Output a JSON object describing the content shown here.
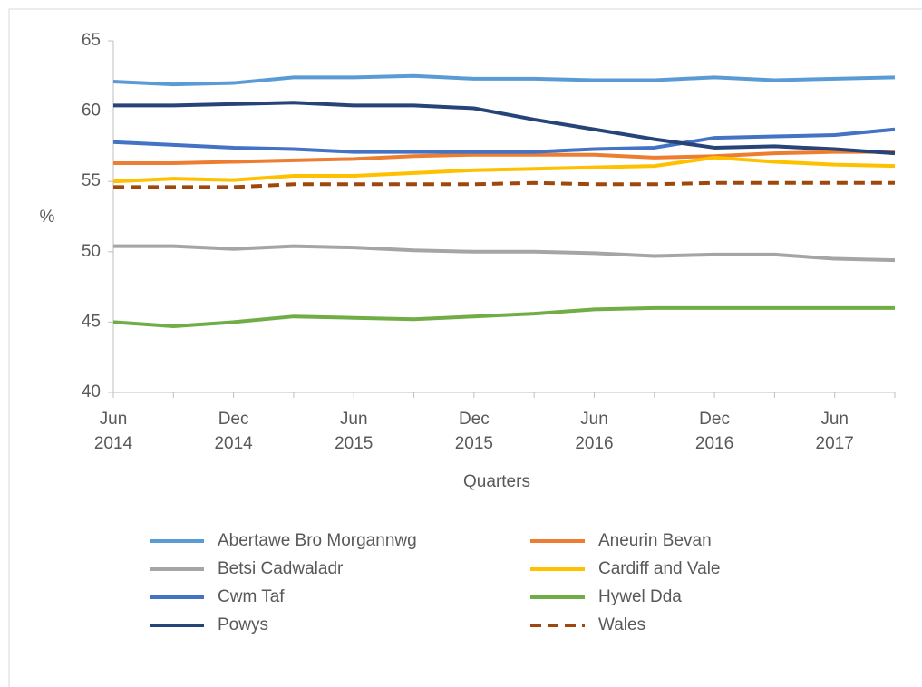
{
  "chart_data": {
    "type": "line",
    "x_label": "Quarters",
    "y_label": "%",
    "categories": [
      "Jun 2014",
      null,
      "Dec 2014",
      null,
      "Jun 2015",
      null,
      "Dec 2015",
      null,
      "Jun 2016",
      null,
      "Dec 2016",
      null,
      "Jun 2017",
      null
    ],
    "ylim": [
      40,
      65
    ],
    "yticks": [
      40,
      45,
      50,
      55,
      60,
      65
    ],
    "grid": false,
    "legend": "bottom",
    "series": [
      {
        "name": "Abertawe Bro Morgannwg",
        "color": "#5b9bd5",
        "values": [
          62.1,
          61.9,
          62.0,
          62.4,
          62.4,
          62.5,
          62.3,
          62.3,
          62.2,
          62.2,
          62.4,
          62.2,
          62.3,
          62.4
        ]
      },
      {
        "name": "Aneurin Bevan",
        "color": "#ed7d31",
        "values": [
          56.3,
          56.3,
          56.4,
          56.5,
          56.6,
          56.8,
          56.9,
          56.9,
          56.9,
          56.7,
          56.8,
          57.0,
          57.1,
          57.1
        ]
      },
      {
        "name": "Betsi Cadwaladr",
        "color": "#a5a5a5",
        "values": [
          50.4,
          50.4,
          50.2,
          50.4,
          50.3,
          50.1,
          50.0,
          50.0,
          49.9,
          49.7,
          49.8,
          49.8,
          49.5,
          49.4
        ]
      },
      {
        "name": "Cardiff and Vale",
        "color": "#ffc000",
        "values": [
          55.0,
          55.2,
          55.1,
          55.4,
          55.4,
          55.6,
          55.8,
          55.9,
          56.0,
          56.1,
          56.7,
          56.4,
          56.2,
          56.1
        ]
      },
      {
        "name": "Cwm Taf",
        "color": "#4472c4",
        "values": [
          57.8,
          57.6,
          57.4,
          57.3,
          57.1,
          57.1,
          57.1,
          57.1,
          57.3,
          57.4,
          58.1,
          58.2,
          58.3,
          58.7
        ]
      },
      {
        "name": "Hywel Dda",
        "color": "#70ad47",
        "values": [
          45.0,
          44.7,
          45.0,
          45.4,
          45.3,
          45.2,
          45.4,
          45.6,
          45.9,
          46.0,
          46.0,
          46.0,
          46.0,
          46.0
        ]
      },
      {
        "name": "Powys",
        "color": "#264478",
        "values": [
          60.4,
          60.4,
          60.5,
          60.6,
          60.4,
          60.4,
          60.2,
          59.4,
          58.7,
          58.0,
          57.4,
          57.5,
          57.3,
          57.0
        ]
      },
      {
        "name": "Wales",
        "color": "#9e480e",
        "style": "dashed",
        "values": [
          54.6,
          54.6,
          54.6,
          54.8,
          54.8,
          54.8,
          54.8,
          54.9,
          54.8,
          54.8,
          54.9,
          54.9,
          54.9,
          54.9
        ]
      }
    ]
  }
}
